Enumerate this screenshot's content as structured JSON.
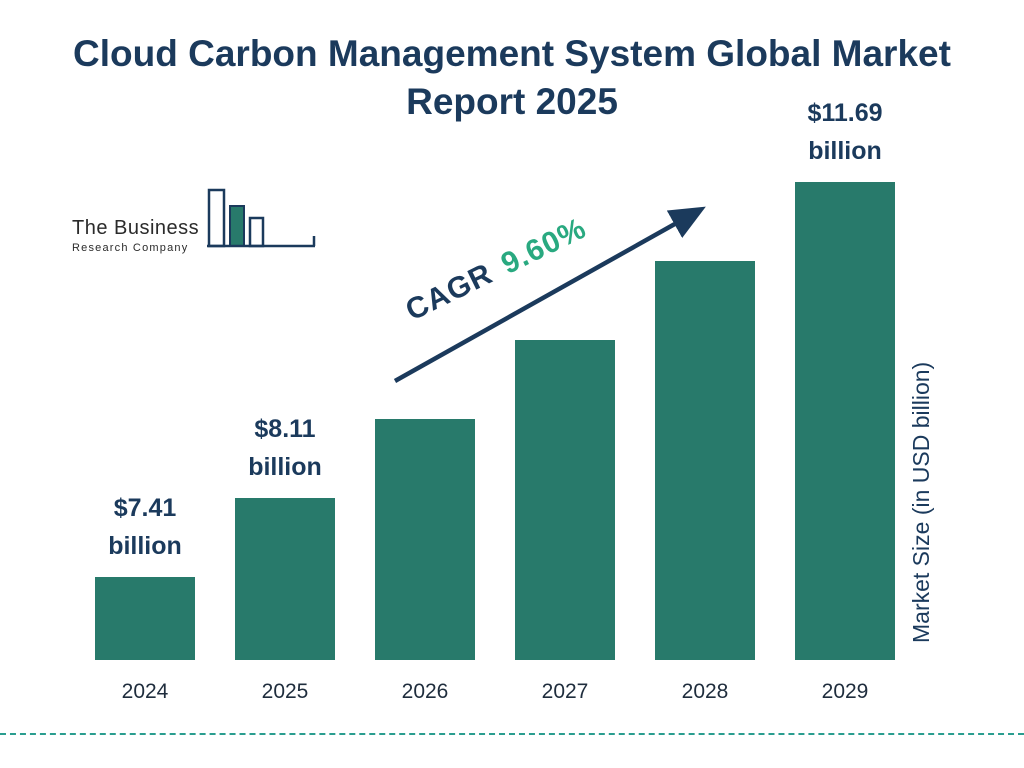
{
  "title": "Cloud Carbon Management System Global Market Report 2025",
  "logo": {
    "line1": "The Business",
    "line2": "Research Company"
  },
  "cagr": {
    "prefix": "CAGR",
    "value": "9.60%"
  },
  "y_axis_label": "Market Size (in USD billion)",
  "colors": {
    "bar": "#287a6b",
    "navy": "#1b3a5c",
    "green": "#29a980",
    "dashed_line": "#2a9d8f",
    "axis_text": "#1f2d3d"
  },
  "chart_data": {
    "type": "bar",
    "title": "Cloud Carbon Management System Global Market Report 2025",
    "categories": [
      "2024",
      "2025",
      "2026",
      "2027",
      "2028",
      "2029"
    ],
    "values": [
      7.41,
      8.11,
      8.89,
      9.74,
      10.68,
      11.69
    ],
    "unit": "USD billion",
    "ylabel": "Market Size (in USD billion)",
    "cagr": "9.60%",
    "legend_position": "none",
    "grid": false,
    "value_labels": [
      {
        "amount": "$7.41",
        "unit": "billion"
      },
      {
        "amount": "$8.11",
        "unit": "billion"
      },
      null,
      null,
      null,
      {
        "amount": "$11.69",
        "unit": "billion"
      }
    ]
  }
}
